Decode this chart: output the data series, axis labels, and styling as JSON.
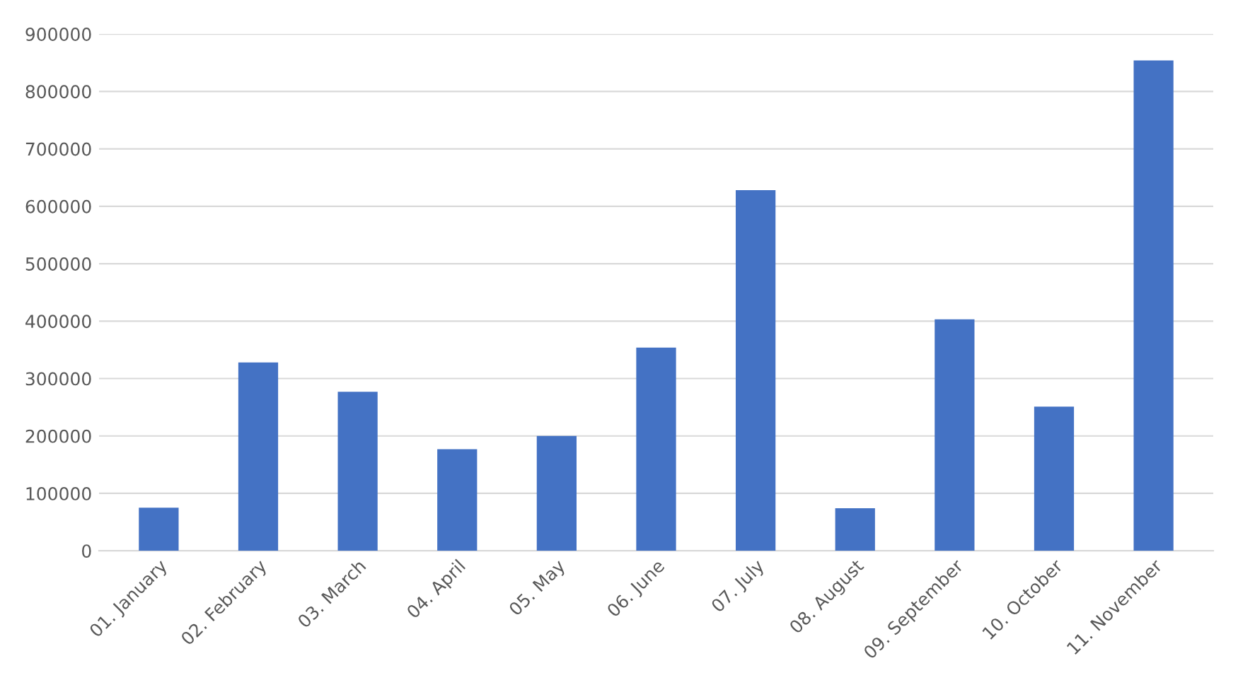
{
  "chart_data": {
    "type": "bar",
    "categories": [
      "01. January",
      "02. February",
      "03. March",
      "04. April",
      "05. May",
      "06. June",
      "07. July",
      "08. August",
      "09. September",
      "10. October",
      "11. November"
    ],
    "values": [
      75000,
      328000,
      277000,
      177000,
      200000,
      354000,
      628000,
      74000,
      403000,
      251000,
      854000
    ],
    "color": "#4472c4",
    "ylim": [
      0,
      900000
    ],
    "yticks": [
      0,
      100000,
      200000,
      300000,
      400000,
      500000,
      600000,
      700000,
      800000,
      900000
    ],
    "grid": "y",
    "legend": false
  }
}
